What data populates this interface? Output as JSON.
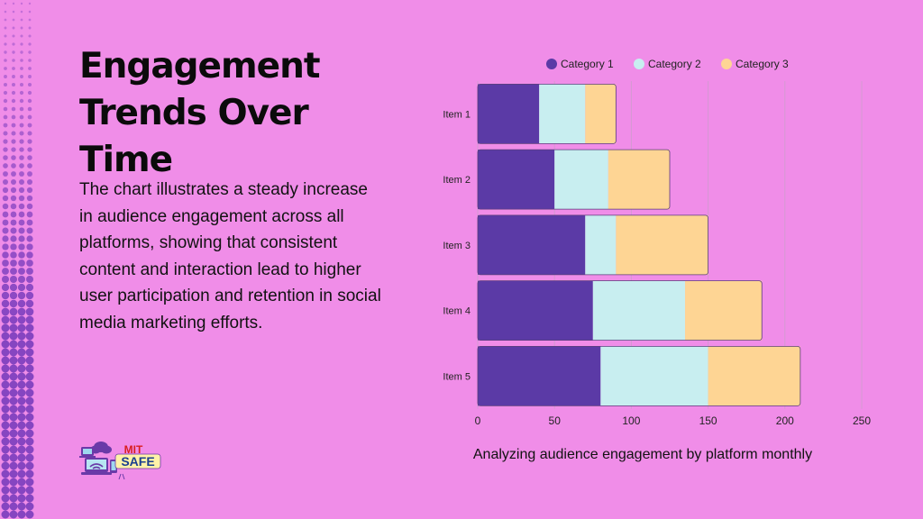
{
  "slide": {
    "title": "Engagement Trends Over Time",
    "description": "The chart illustrates a steady increase in audience engagement across all platforms, showing that consistent content and interaction lead to higher user participation and retention in social media marketing efforts.",
    "caption": "Analyzing audience engagement by platform monthly",
    "logo": {
      "line1": "MIT",
      "line2": "SAFE"
    },
    "colors": {
      "background": "#f08de8",
      "dots": "#7a3dbd",
      "title": "#0b0b0b"
    }
  },
  "chart_data": {
    "type": "bar",
    "orientation": "horizontal",
    "stacked": true,
    "categories": [
      "Item 1",
      "Item 2",
      "Item 3",
      "Item 4",
      "Item 5"
    ],
    "series": [
      {
        "name": "Category 1",
        "values": [
          40,
          50,
          70,
          75,
          80
        ],
        "color": "#5b3aa6"
      },
      {
        "name": "Category 2",
        "values": [
          30,
          35,
          20,
          60,
          70
        ],
        "color": "#c8eef0"
      },
      {
        "name": "Category 3",
        "values": [
          20,
          40,
          60,
          50,
          60
        ],
        "color": "#fed594"
      }
    ],
    "xticks": [
      0,
      50,
      100,
      150,
      200,
      250
    ],
    "xlim": [
      0,
      250
    ],
    "legend": "top",
    "grid": "vertical"
  }
}
